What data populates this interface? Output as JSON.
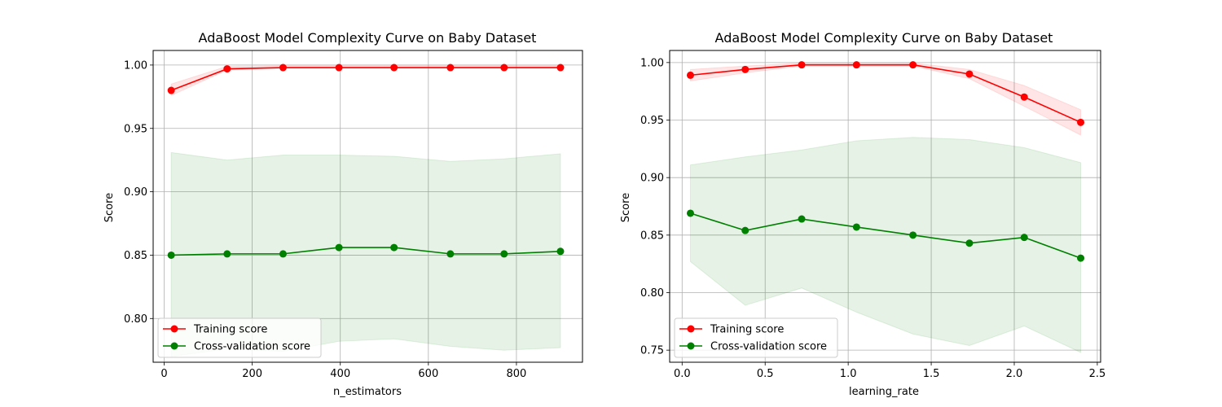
{
  "chart_data": [
    {
      "type": "line",
      "title": "AdaBoost Model Complexity Curve on Baby Dataset",
      "xlabel": "n_estimators",
      "ylabel": "Score",
      "xlim": [
        -25,
        950
      ],
      "ylim": [
        0.7655,
        1.0115
      ],
      "xticks": [
        0,
        200,
        400,
        600,
        800
      ],
      "xtick_labels": [
        "0",
        "200",
        "400",
        "600",
        "800"
      ],
      "yticks": [
        0.8,
        0.85,
        0.9,
        0.95,
        1.0
      ],
      "ytick_labels": [
        "0.80",
        "0.85",
        "0.90",
        "0.95",
        "1.00"
      ],
      "grid": true,
      "legend_position": "lower-left",
      "x": [
        16,
        143,
        270,
        397,
        522,
        650,
        772,
        900
      ],
      "series": [
        {
          "name": "Training score",
          "color": "#ff0000",
          "values": [
            0.98,
            0.997,
            0.998,
            0.998,
            0.998,
            0.998,
            0.998,
            0.998
          ],
          "band_lower": [
            0.976,
            0.996,
            0.9975,
            0.9975,
            0.9975,
            0.9975,
            0.9975,
            0.9975
          ],
          "band_upper": [
            0.985,
            0.999,
            0.9995,
            0.9995,
            0.9995,
            0.9995,
            0.9995,
            0.9995
          ]
        },
        {
          "name": "Cross-validation score",
          "color": "#008000",
          "values": [
            0.85,
            0.851,
            0.851,
            0.856,
            0.856,
            0.851,
            0.851,
            0.853
          ],
          "band_lower": [
            0.77,
            0.776,
            0.774,
            0.782,
            0.784,
            0.778,
            0.775,
            0.777
          ],
          "band_upper": [
            0.931,
            0.925,
            0.929,
            0.929,
            0.928,
            0.924,
            0.926,
            0.93
          ]
        }
      ]
    },
    {
      "type": "line",
      "title": "AdaBoost Model Complexity Curve on Baby Dataset",
      "xlabel": "learning_rate",
      "ylabel": "Score",
      "xlim": [
        -0.075,
        2.52
      ],
      "ylim": [
        0.7395,
        1.0105
      ],
      "xticks": [
        0.0,
        0.5,
        1.0,
        1.5,
        2.0,
        2.5
      ],
      "xtick_labels": [
        "0.0",
        "0.5",
        "1.0",
        "1.5",
        "2.0",
        "2.5"
      ],
      "yticks": [
        0.75,
        0.8,
        0.85,
        0.9,
        0.95,
        1.0
      ],
      "ytick_labels": [
        "0.75",
        "0.80",
        "0.85",
        "0.90",
        "0.95",
        "1.00"
      ],
      "grid": true,
      "legend_position": "lower-left",
      "x": [
        0.05,
        0.38,
        0.72,
        1.05,
        1.39,
        1.73,
        2.06,
        2.4
      ],
      "series": [
        {
          "name": "Training score",
          "color": "#ff0000",
          "values": [
            0.989,
            0.994,
            0.998,
            0.998,
            0.998,
            0.99,
            0.97,
            0.948
          ],
          "band_lower": [
            0.984,
            0.991,
            0.997,
            0.997,
            0.997,
            0.986,
            0.962,
            0.937
          ],
          "band_upper": [
            0.994,
            0.997,
            0.9995,
            0.9995,
            0.9995,
            0.994,
            0.98,
            0.959
          ]
        },
        {
          "name": "Cross-validation score",
          "color": "#008000",
          "values": [
            0.869,
            0.854,
            0.864,
            0.857,
            0.85,
            0.843,
            0.848,
            0.83
          ],
          "band_lower": [
            0.827,
            0.789,
            0.804,
            0.783,
            0.764,
            0.754,
            0.771,
            0.748
          ],
          "band_upper": [
            0.911,
            0.918,
            0.924,
            0.932,
            0.935,
            0.933,
            0.926,
            0.913
          ]
        }
      ]
    }
  ]
}
